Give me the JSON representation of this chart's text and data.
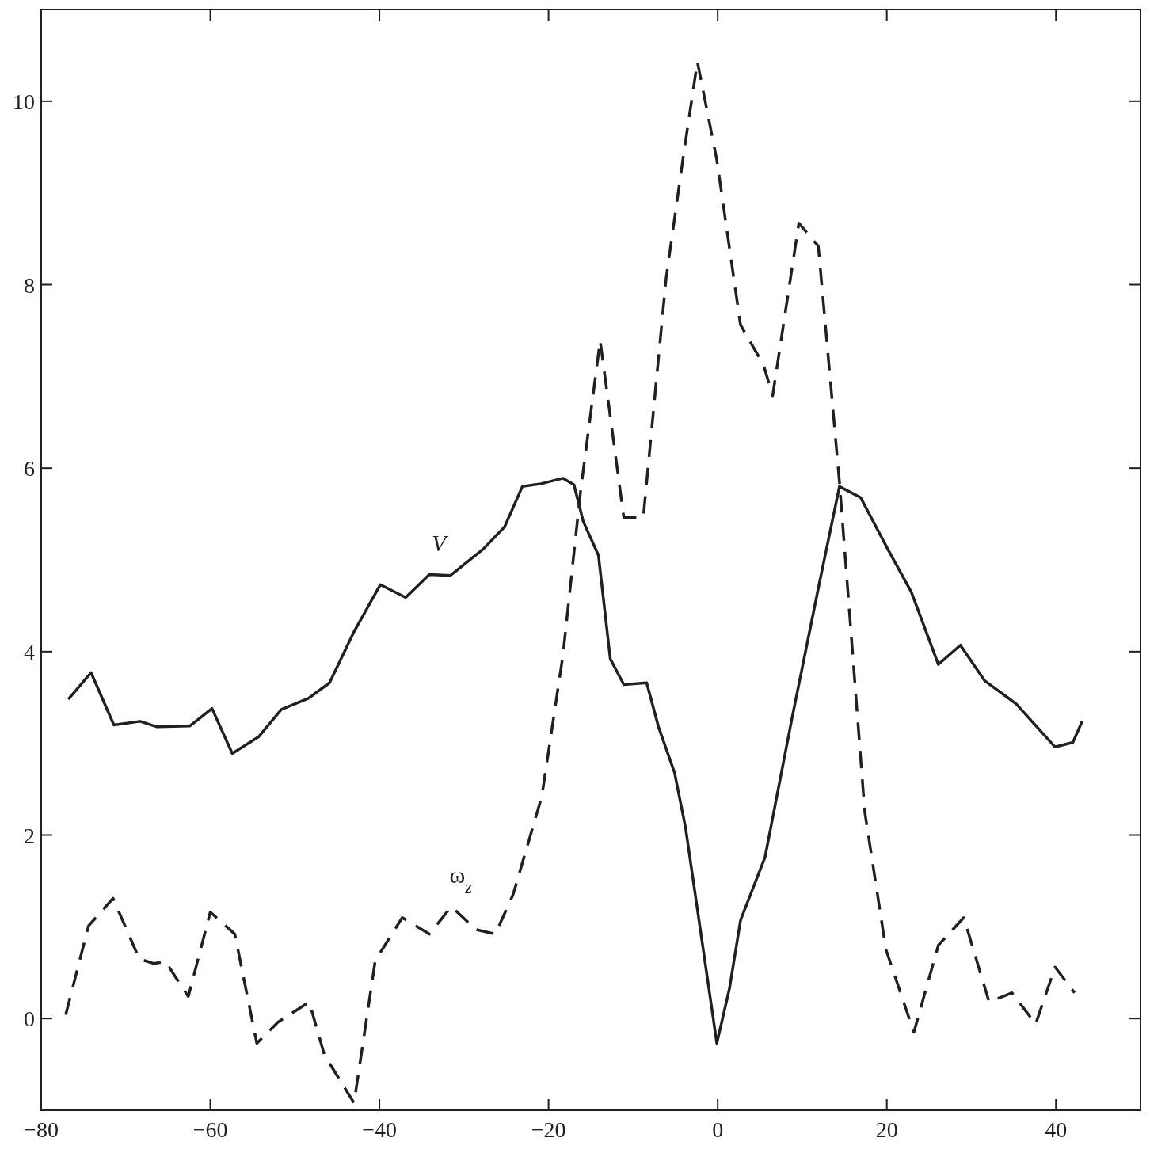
{
  "chart_data": {
    "type": "line",
    "xlim": [
      -80,
      50
    ],
    "ylim": [
      -1,
      11
    ],
    "xticks": [
      {
        "value": -80,
        "label": "−80"
      },
      {
        "value": -60,
        "label": "−60"
      },
      {
        "value": -40,
        "label": "−40"
      },
      {
        "value": -20,
        "label": "−20"
      },
      0,
      20,
      40
    ],
    "yticks": [
      0,
      2,
      4,
      6,
      8,
      10
    ],
    "grid": false,
    "series": [
      {
        "name": "V",
        "color": "#231f20",
        "line_style": "solid",
        "x": [
          -76.8,
          -74.1,
          -71.4,
          -68.3,
          -66.3,
          -62.4,
          -59.8,
          -57.4,
          -54.3,
          -51.6,
          -48.4,
          -45.9,
          -43.1,
          -39.9,
          -36.9,
          -34.1,
          -31.6,
          -27.7,
          -25.2,
          -23.1,
          -20.9,
          -18.3,
          -17.0,
          -15.9,
          -14.1,
          -12.7,
          -11.1,
          -8.4,
          -7.0,
          -5.1,
          -3.8,
          -0.1,
          1.4,
          2.7,
          5.6,
          8.8,
          11.9,
          14.4,
          16.9,
          20.1,
          22.9,
          26.1,
          28.7,
          31.6,
          35.3,
          39.9,
          42.0,
          43.1
        ],
        "values": [
          3.48,
          3.77,
          3.2,
          3.24,
          3.18,
          3.19,
          3.38,
          2.89,
          3.07,
          3.37,
          3.49,
          3.66,
          4.2,
          4.73,
          4.59,
          4.84,
          4.83,
          5.12,
          5.36,
          5.8,
          5.83,
          5.89,
          5.82,
          5.42,
          5.05,
          3.92,
          3.64,
          3.66,
          3.18,
          2.68,
          2.08,
          -0.27,
          0.33,
          1.07,
          1.76,
          3.28,
          4.69,
          5.8,
          5.68,
          5.12,
          4.65,
          3.86,
          4.07,
          3.68,
          3.43,
          2.96,
          3.01,
          3.24
        ]
      },
      {
        "name": "ω$_{z}$",
        "color": "#231f20",
        "line_style": "dashed",
        "x": [
          -77.1,
          -74.4,
          -71.5,
          -68.4,
          -66.7,
          -65.3,
          -62.6,
          -60.0,
          -57.1,
          -54.5,
          -52.0,
          -48.3,
          -46.5,
          -43.0,
          -40.5,
          -37.3,
          -34.1,
          -31.5,
          -28.6,
          -26.3,
          -24.2,
          -20.8,
          -18.3,
          -16.2,
          -13.9,
          -11.1,
          -8.8,
          -6.1,
          -4.0,
          -2.4,
          -0.1,
          2.7,
          5.4,
          6.5,
          9.6,
          11.9,
          14.4,
          17.4,
          19.9,
          23.2,
          26.1,
          29.1,
          32.1,
          34.8,
          37.6,
          39.9,
          42.2
        ],
        "values": [
          0.04,
          1.01,
          1.31,
          0.65,
          0.6,
          0.62,
          0.24,
          1.16,
          0.92,
          -0.27,
          -0.04,
          0.18,
          -0.4,
          -0.92,
          0.63,
          1.1,
          0.92,
          1.22,
          0.97,
          0.92,
          1.35,
          2.42,
          3.96,
          5.76,
          7.39,
          5.46,
          5.46,
          8.07,
          9.44,
          10.43,
          9.36,
          7.56,
          7.13,
          6.79,
          8.67,
          8.42,
          5.85,
          2.25,
          0.75,
          -0.15,
          0.8,
          1.1,
          0.18,
          0.28,
          -0.06,
          0.56,
          0.28
        ]
      }
    ]
  }
}
